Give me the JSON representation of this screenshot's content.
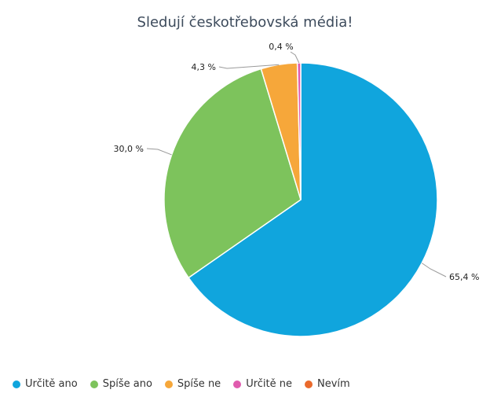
{
  "chart_data": {
    "type": "pie",
    "title": "Sledují českotřebovská média!",
    "slices": [
      {
        "name": "Určitě ano",
        "value": 65.4,
        "label": "65,4 %",
        "color": "#10a5dd"
      },
      {
        "name": "Spíše ano",
        "value": 30.0,
        "label": "30,0 %",
        "color": "#7dc35c"
      },
      {
        "name": "Spíše ne",
        "value": 4.3,
        "label": "4,3 %",
        "color": "#f6a73a"
      },
      {
        "name": "Určitě ne",
        "value": 0.4,
        "label": "0,4 %",
        "color": "#e05cae"
      },
      {
        "name": "Nevím",
        "value": 0.0,
        "label": "",
        "color": "#ea6a2c"
      }
    ],
    "legend_position": "bottom-left"
  }
}
